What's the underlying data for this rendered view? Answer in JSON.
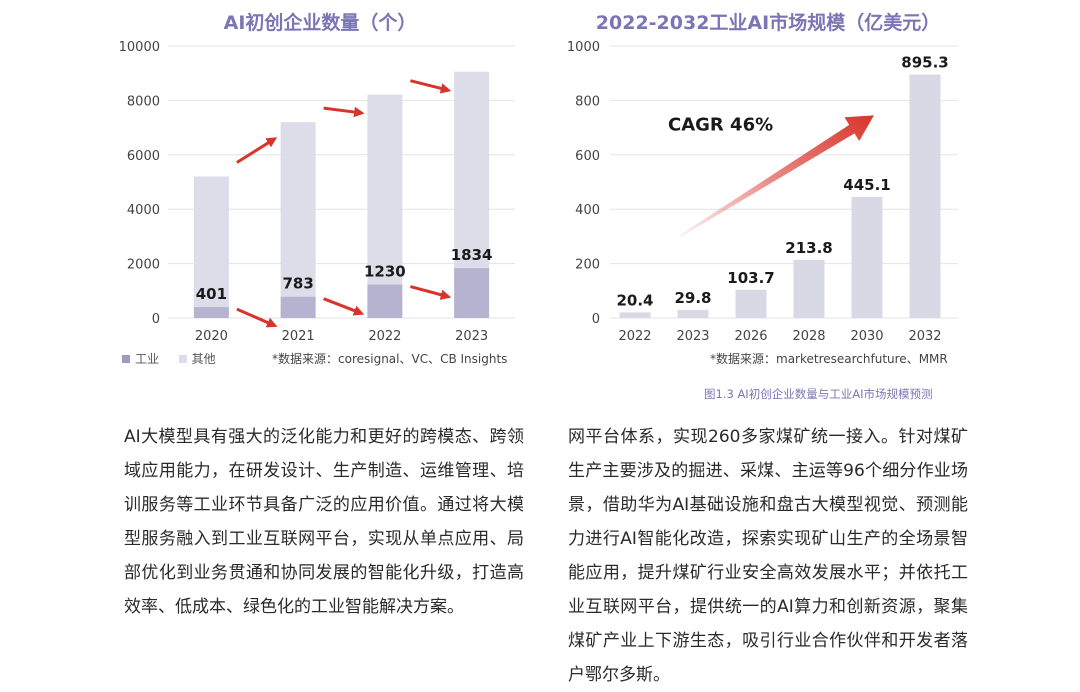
{
  "chart_data": [
    {
      "type": "bar",
      "title": "AI初创企业数量（个）",
      "categories": [
        "2020",
        "2021",
        "2022",
        "2023"
      ],
      "series": [
        {
          "name": "工业",
          "values": [
            401,
            783,
            1230,
            1834
          ]
        },
        {
          "name": "其他",
          "values": [
            4800,
            6420,
            6980,
            7220
          ]
        }
      ],
      "stacked": true,
      "ylim": [
        0,
        10000
      ],
      "yticks": [
        0,
        2000,
        4000,
        6000,
        8000,
        10000
      ],
      "data_labels": [
        "401",
        "783",
        "1230",
        "1834"
      ],
      "legend_position": "bottom-left",
      "source": "*数据来源：coresignal、VC、CB Insights",
      "colors": {
        "industry": "#b5b3cf",
        "other": "#dcdde9",
        "arrow": "#d9342b"
      }
    },
    {
      "type": "bar",
      "title": "2022-2032工业AI市场规模（亿美元）",
      "categories": [
        "2022",
        "2023",
        "2026",
        "2028",
        "2030",
        "2032"
      ],
      "values": [
        20.4,
        29.8,
        103.7,
        213.8,
        445.1,
        895.3
      ],
      "data_labels": [
        "20.4",
        "29.8",
        "103.7",
        "213.8",
        "445.1",
        "895.3"
      ],
      "ylim": [
        0,
        1000
      ],
      "yticks": [
        0,
        200,
        400,
        600,
        800,
        1000
      ],
      "annotation": "CAGR 46%",
      "source": "*数据来源：marketresearchfuture、MMR",
      "colors": {
        "bar": "#d9d9e6",
        "arrow": "#d9342b"
      }
    }
  ],
  "caption": "图1.3 AI初创企业数量与工业AI市场规模预测",
  "body": {
    "left_text": "AI大模型具有强大的泛化能力和更好的跨模态、跨领域应用能力，在研发设计、生产制造、运维管理、培训服务等工业环节具备广泛的应用价值。通过将大模型服务融入到工业互联网平台，实现从单点应用、局部优化到业务贯通和协同发展的智能化升级，打造高效率、低成本、绿色化的工业智能解决方案。",
    "right_text": "网平台体系，实现260多家煤矿统一接入。针对煤矿生产主要涉及的掘进、采煤、主运等96个细分作业场景，借助华为AI基础设施和盘古大模型视觉、预测能力进行AI智能化改造，探索实现矿山生产的全场景智能应用，提升煤矿行业安全高效发展水平；并依托工业互联网平台，提供统一的AI算力和创新资源，聚集煤矿产业上下游生态，吸引行业合作伙伴和开发者落户鄂尔多斯。"
  }
}
